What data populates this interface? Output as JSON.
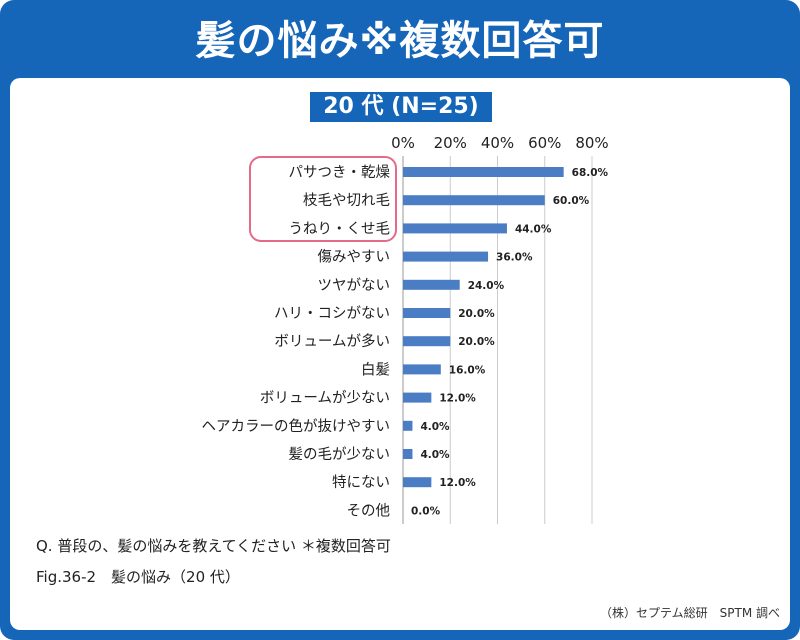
{
  "header": {
    "title": "髪の悩み※複数回答可"
  },
  "chart_data": {
    "type": "bar",
    "orientation": "horizontal",
    "title": "20 代 (N=25)",
    "categories": [
      "パサつき・乾燥",
      "枝毛や切れ毛",
      "うねり・くせ毛",
      "傷みやすい",
      "ツヤがない",
      "ハリ・コシがない",
      "ボリュームが多い",
      "白髪",
      "ボリュームが少ない",
      "ヘアカラーの色が抜けやすい",
      "髪の毛が少ない",
      "特にない",
      "その他"
    ],
    "values": [
      68.0,
      60.0,
      44.0,
      36.0,
      24.0,
      20.0,
      20.0,
      16.0,
      12.0,
      4.0,
      4.0,
      12.0,
      0.0
    ],
    "value_labels": [
      "68.0%",
      "60.0%",
      "44.0%",
      "36.0%",
      "24.0%",
      "20.0%",
      "20.0%",
      "16.0%",
      "12.0%",
      "4.0%",
      "4.0%",
      "12.0%",
      "0.0%"
    ],
    "xlim": [
      0,
      80
    ],
    "xticks": [
      "0%",
      "20%",
      "40%",
      "60%",
      "80%"
    ],
    "x_axis_position": "top",
    "grid": true,
    "highlighted_categories": [
      0,
      1,
      2
    ],
    "colors": {
      "bar": "#4a7dc4",
      "highlight": "#e36b86",
      "grid": "#cccccc"
    }
  },
  "footer": {
    "question": "Q. 普段の、髪の悩みを教えてください ＊複数回答可",
    "figure": "Fig.36-2　髪の悩み（20 代）",
    "source": "（株）セプテム総研　SPTM 調べ"
  }
}
